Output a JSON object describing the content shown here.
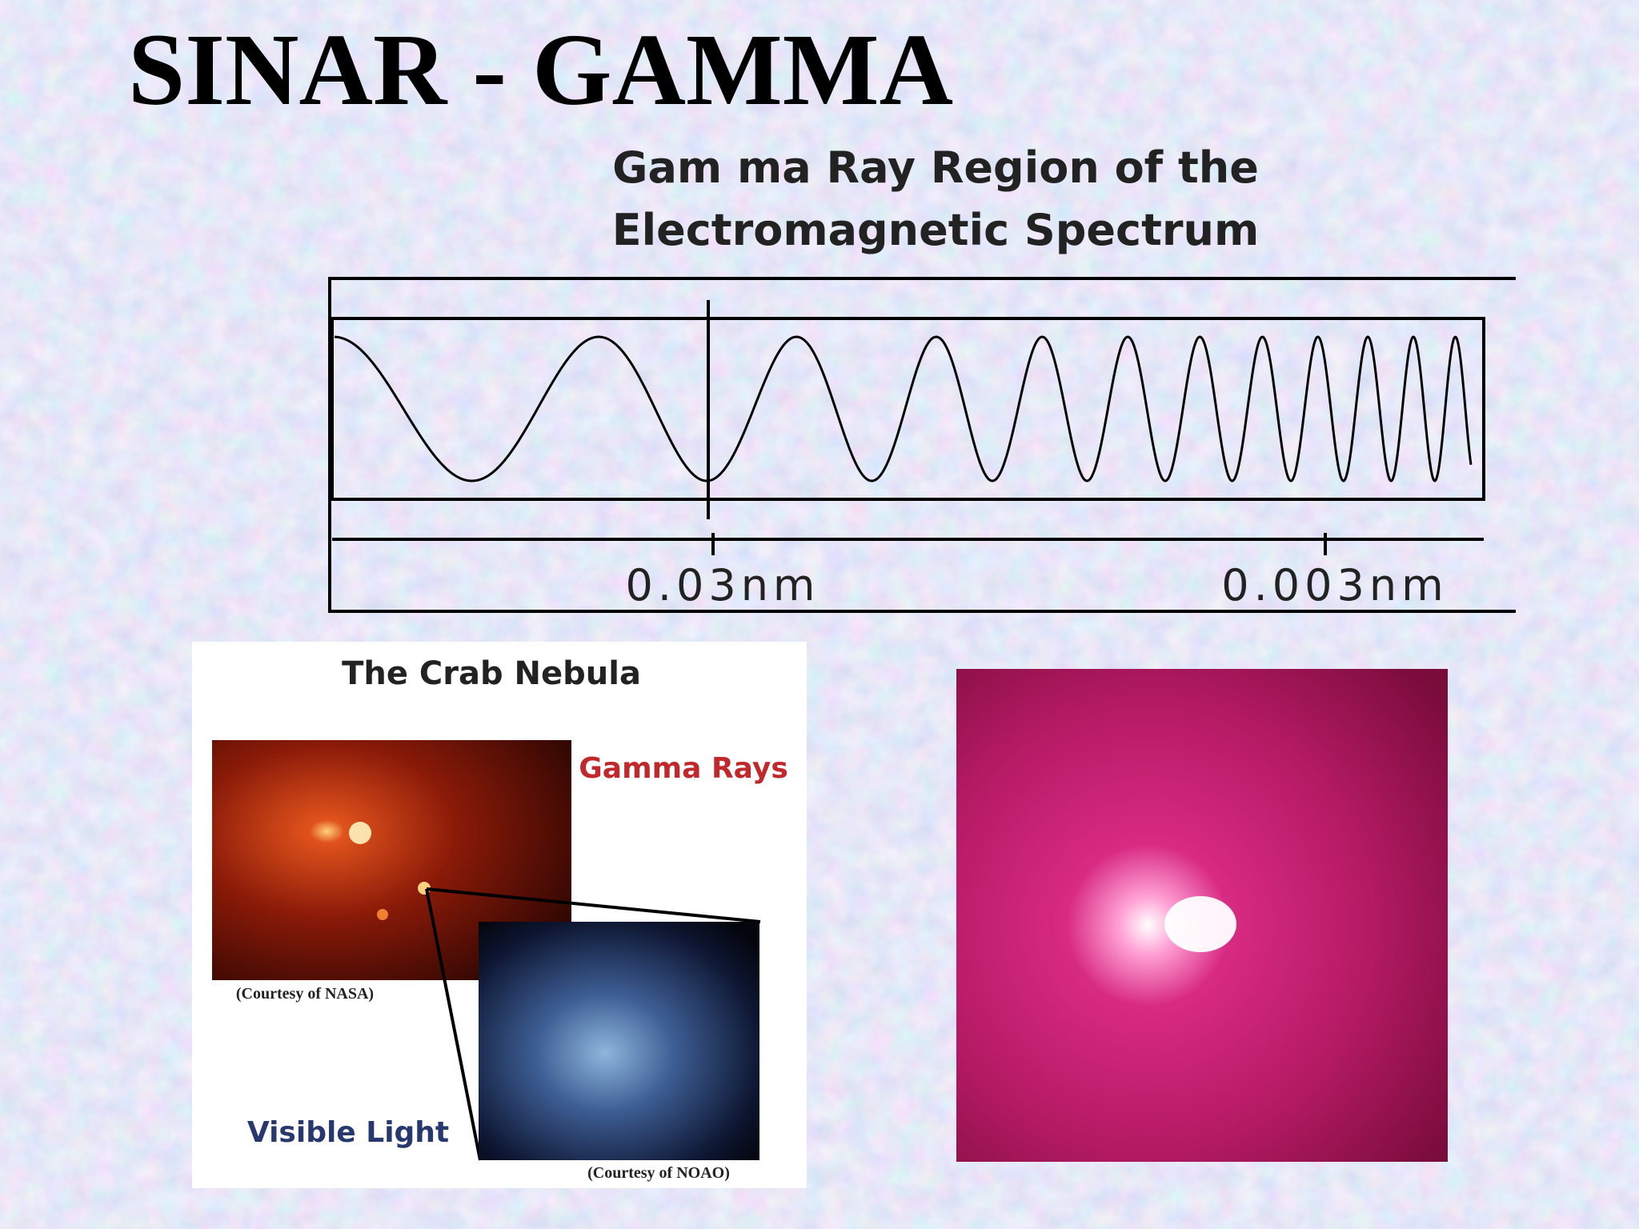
{
  "title": "SINAR - GAMMA",
  "spectrum": {
    "title_lines": [
      "Gam ma Ray Region of the",
      "Electromagnetic Spectrum"
    ],
    "markers": [
      "0.03nm",
      "0.003nm"
    ]
  },
  "crab_panel": {
    "title": "The Crab Nebula",
    "gamma_label": "Gamma Rays",
    "gamma_credit": "(Courtesy of NASA)",
    "visible_label": "Visible Light",
    "visible_credit": "(Courtesy of NOAO)"
  }
}
